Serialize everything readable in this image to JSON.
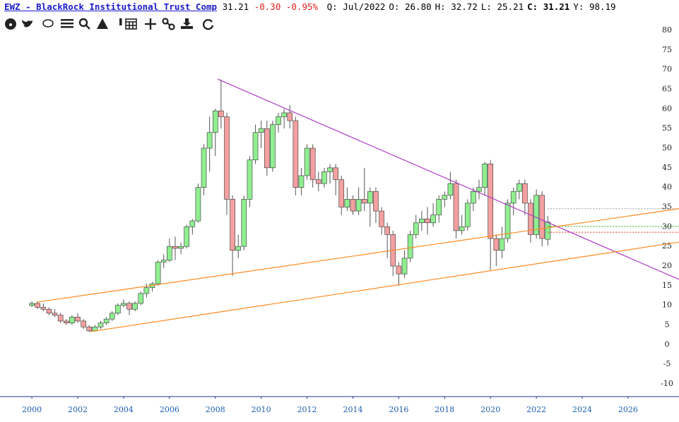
{
  "quote": {
    "symbol": "EWZ - BlackRock Institutional Trust Comp",
    "last": "31.21",
    "change": "-0.30",
    "change_pct": "-0.95%",
    "fields": [
      {
        "label": "Q:",
        "value": "Jul/2022"
      },
      {
        "label": "O:",
        "value": "26.80"
      },
      {
        "label": "H:",
        "value": "32.72"
      },
      {
        "label": "L:",
        "value": "25.21"
      },
      {
        "label": "C:",
        "value": "31.21"
      },
      {
        "label": "Y:",
        "value": "98.19"
      }
    ]
  },
  "chart_data": {
    "type": "candlestick",
    "xlim": [
      1998.61,
      2028.22
    ],
    "xticks": [
      2000,
      2002,
      2004,
      2006,
      2008,
      2010,
      2012,
      2014,
      2016,
      2018,
      2020,
      2022,
      2024,
      2026
    ],
    "ylim": [
      -10,
      80
    ],
    "yticks": [
      80,
      75,
      70,
      65,
      60,
      55,
      50,
      45,
      40,
      35,
      30,
      25,
      20,
      15,
      10,
      5,
      0,
      -5,
      -10
    ],
    "up_color": "#90ee90",
    "down_color": "#f4a0a0",
    "x": [
      2000,
      2000.25,
      2000.5,
      2000.75,
      2001,
      2001.25,
      2001.5,
      2001.75,
      2002,
      2002.25,
      2002.5,
      2002.75,
      2003,
      2003.25,
      2003.5,
      2003.75,
      2004,
      2004.25,
      2004.5,
      2004.75,
      2005,
      2005.25,
      2005.5,
      2005.75,
      2006,
      2006.25,
      2006.5,
      2006.75,
      2007,
      2007.25,
      2007.5,
      2007.75,
      2008,
      2008.25,
      2008.5,
      2008.75,
      2009,
      2009.25,
      2009.5,
      2009.75,
      2010,
      2010.25,
      2010.5,
      2010.75,
      2011,
      2011.25,
      2011.5,
      2011.75,
      2012,
      2012.25,
      2012.5,
      2012.75,
      2013,
      2013.25,
      2013.5,
      2013.75,
      2014,
      2014.25,
      2014.5,
      2014.75,
      2015,
      2015.25,
      2015.5,
      2015.75,
      2016,
      2016.25,
      2016.5,
      2016.75,
      2017,
      2017.25,
      2017.5,
      2017.75,
      2018,
      2018.25,
      2018.5,
      2018.75,
      2019,
      2019.25,
      2019.5,
      2019.75,
      2020,
      2020.25,
      2020.5,
      2020.75,
      2021,
      2021.25,
      2021.5,
      2021.75,
      2022,
      2022.25,
      2022.5
    ],
    "open": [
      10,
      10.5,
      9.5,
      9,
      8,
      7.5,
      6,
      5.5,
      7,
      6,
      4.5,
      3.5,
      4.5,
      5.5,
      6.5,
      8,
      10,
      10.5,
      9,
      10.5,
      13,
      14.5,
      15.5,
      21,
      21.5,
      25,
      24.5,
      25,
      30,
      31.5,
      40,
      50,
      54,
      59.5,
      58,
      37,
      24,
      25,
      37,
      47,
      54,
      55,
      45,
      56,
      58,
      59,
      57,
      40,
      43,
      50,
      42,
      41,
      44,
      45,
      42,
      35,
      37,
      34,
      37,
      36,
      39,
      34,
      30,
      28,
      20,
      18,
      22,
      28,
      31,
      32,
      31,
      33,
      37,
      38,
      41,
      29,
      30,
      36,
      39,
      40,
      46,
      27,
      24,
      27,
      36,
      39,
      41,
      36,
      28,
      38,
      26.8
    ],
    "high": [
      11,
      11,
      10.5,
      9.5,
      9,
      8,
      6.5,
      7.5,
      8,
      6.5,
      5,
      5,
      6,
      7,
      8.5,
      10.5,
      11.5,
      11,
      11,
      13.5,
      15.5,
      16,
      21.5,
      23,
      27,
      27.5,
      26,
      30.5,
      32,
      41,
      51,
      58,
      60,
      67.5,
      59,
      38,
      28,
      38,
      48,
      56,
      57,
      57,
      57,
      59,
      60,
      61,
      58,
      45,
      51,
      51,
      44,
      45,
      46,
      46,
      43,
      40,
      38,
      40,
      45,
      40,
      40,
      35,
      31,
      29,
      21,
      24,
      29,
      33,
      34,
      35,
      36,
      38,
      39,
      44,
      42,
      33,
      37,
      40,
      42,
      46.5,
      47,
      28,
      30,
      37,
      40,
      42,
      42,
      37,
      39.5,
      39,
      32.72
    ],
    "low": [
      9.5,
      9,
      8.5,
      7.5,
      7,
      5.5,
      5,
      5,
      5.5,
      4,
      3.2,
      3.3,
      4,
      5,
      6,
      7.5,
      9.5,
      7.5,
      8.5,
      10,
      12,
      13.5,
      15,
      19.5,
      21,
      21.5,
      23,
      24.5,
      28,
      31,
      38,
      44,
      48,
      55,
      33,
      17.5,
      22,
      24,
      35,
      46,
      50,
      43,
      44,
      54,
      55,
      55,
      38,
      38,
      42,
      40,
      39,
      40,
      41,
      38,
      33,
      34,
      33,
      33,
      34,
      30,
      31,
      28,
      22,
      17.5,
      15,
      17,
      21,
      27,
      29,
      28,
      30,
      31,
      35,
      37,
      27,
      28,
      29,
      34,
      37,
      38,
      19,
      20,
      22,
      26,
      33,
      37,
      33,
      26,
      27,
      25,
      25.21
    ],
    "close": [
      10.5,
      9.5,
      9,
      8,
      7.5,
      6,
      5.5,
      7,
      6,
      4.5,
      3.5,
      4.5,
      5.5,
      6.5,
      8,
      10,
      10.5,
      9,
      10.5,
      13,
      14.5,
      15.5,
      21,
      21.5,
      25,
      24.5,
      25,
      30,
      31.5,
      40,
      50,
      54,
      59.5,
      58,
      37,
      24,
      25,
      37,
      47,
      54,
      55,
      45,
      56,
      58,
      59,
      57,
      40,
      43,
      50,
      42,
      41,
      44,
      45,
      42,
      35,
      37,
      34,
      37,
      36,
      39,
      34,
      30,
      28,
      20,
      18,
      22,
      28,
      31,
      32,
      31,
      33,
      37,
      38,
      41,
      29,
      30,
      36,
      39,
      40,
      46,
      27,
      24,
      27,
      36,
      39,
      41,
      36,
      28,
      38,
      27,
      31.21
    ],
    "lines": [
      {
        "color": "#b03cc8",
        "x": [
          2008.1,
          2028.22
        ],
        "y": [
          67.6,
          16.6
        ]
      },
      {
        "color": "#ff8a20",
        "x": [
          2000.2,
          2028.22
        ],
        "y": [
          10.8,
          34.6
        ]
      },
      {
        "color": "#ff8a20",
        "x": [
          2002.56,
          2028.22
        ],
        "y": [
          3.3,
          26.1
        ]
      }
    ],
    "levels": [
      {
        "color": "#999999",
        "x": 2022.5,
        "value": 34.6
      },
      {
        "color": "#22aa22",
        "x": 2022.5,
        "value": 30.1
      },
      {
        "color": "#e03030",
        "x": 2022.5,
        "value": 28.6
      }
    ]
  }
}
